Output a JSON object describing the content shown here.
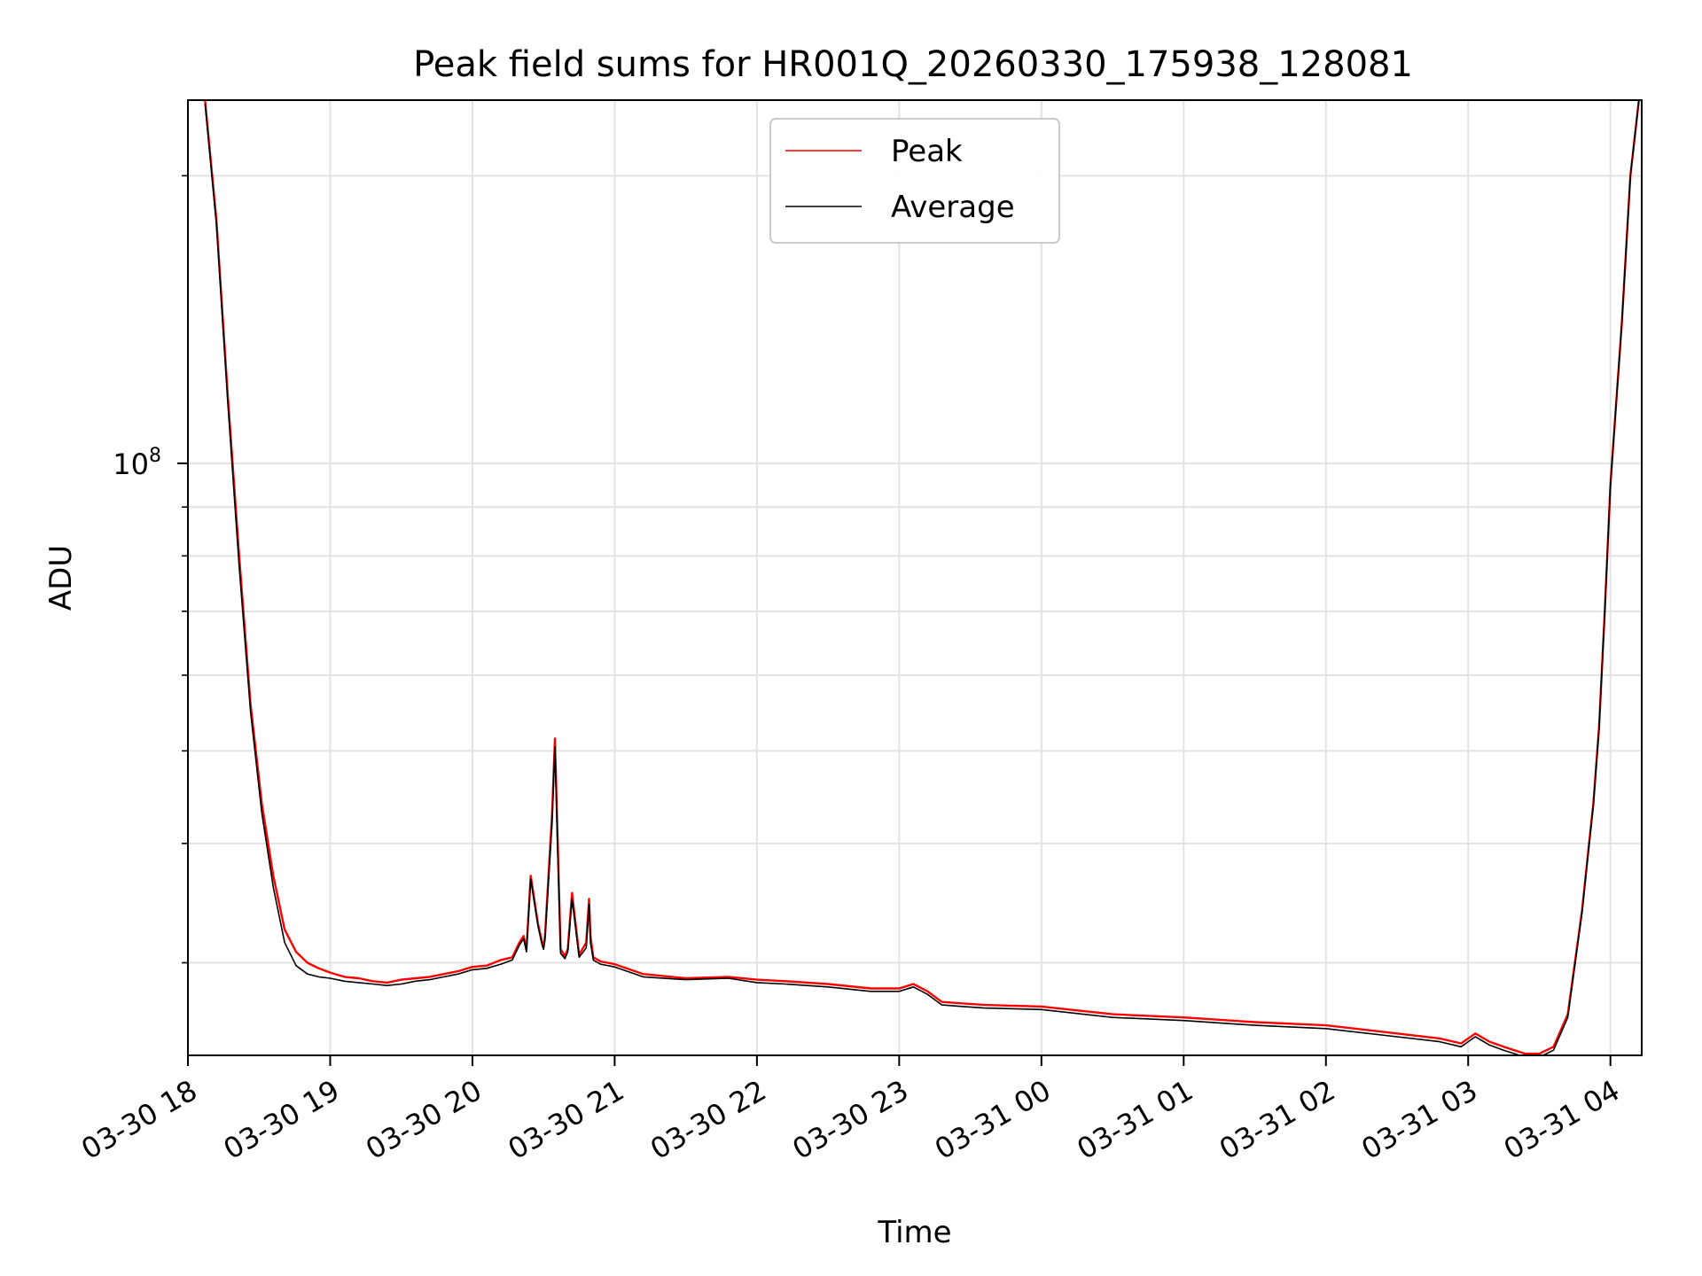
{
  "chart_data": {
    "type": "line",
    "title": "Peak field sums for HR001Q_20260330_175938_128081",
    "xlabel": "Time",
    "ylabel": "ADU",
    "yscale": "log",
    "ylim": [
      24000000,
      240000000
    ],
    "xlim": [
      0,
      10.22
    ],
    "x_ticks": [
      {
        "x": 0,
        "label": "03-30 18"
      },
      {
        "x": 1,
        "label": "03-30 19"
      },
      {
        "x": 2,
        "label": "03-30 20"
      },
      {
        "x": 3,
        "label": "03-30 21"
      },
      {
        "x": 4,
        "label": "03-30 22"
      },
      {
        "x": 5,
        "label": "03-30 23"
      },
      {
        "x": 6,
        "label": "03-31 00"
      },
      {
        "x": 7,
        "label": "03-31 01"
      },
      {
        "x": 8,
        "label": "03-31 02"
      },
      {
        "x": 9,
        "label": "03-31 03"
      },
      {
        "x": 10,
        "label": "03-31 04"
      }
    ],
    "y_major_ticks": [
      {
        "value": 100000000,
        "base": "10",
        "exp": "8"
      }
    ],
    "y_minor_ticks": [
      30000000,
      40000000,
      50000000,
      60000000,
      70000000,
      80000000,
      90000000,
      200000000
    ],
    "grid": true,
    "legend": {
      "position": "top-center",
      "entries": [
        "Peak",
        "Average"
      ]
    },
    "series": [
      {
        "name": "Peak",
        "color": "#ff0000",
        "x": [
          0.12,
          0.2,
          0.28,
          0.36,
          0.44,
          0.52,
          0.6,
          0.68,
          0.76,
          0.84,
          0.92,
          1.0,
          1.1,
          1.2,
          1.3,
          1.4,
          1.5,
          1.6,
          1.7,
          1.8,
          1.9,
          2.0,
          2.1,
          2.2,
          2.28,
          2.33,
          2.36,
          2.38,
          2.41,
          2.46,
          2.49,
          2.5,
          2.51,
          2.53,
          2.56,
          2.58,
          2.6,
          2.62,
          2.65,
          2.67,
          2.7,
          2.75,
          2.8,
          2.82,
          2.83,
          2.85,
          2.9,
          3.0,
          3.2,
          3.5,
          3.8,
          4.0,
          4.2,
          4.5,
          4.8,
          5.0,
          5.1,
          5.2,
          5.3,
          5.45,
          5.6,
          6.0,
          6.5,
          7.0,
          7.5,
          8.0,
          8.5,
          8.8,
          8.95,
          9.05,
          9.15,
          9.25,
          9.4,
          9.5,
          9.6,
          9.7,
          9.8,
          9.85,
          9.88,
          9.92,
          9.96,
          10.0,
          10.08,
          10.14,
          10.2
        ],
        "y": [
          240000000,
          180000000,
          118000000,
          80000000,
          56000000,
          44000000,
          37000000,
          32500000,
          30800000,
          30000000,
          29600000,
          29300000,
          29000000,
          28900000,
          28700000,
          28600000,
          28800000,
          28900000,
          29000000,
          29200000,
          29400000,
          29700000,
          29800000,
          30200000,
          30400000,
          31500000,
          32000000,
          31000000,
          37000000,
          33000000,
          31500000,
          31200000,
          32000000,
          36000000,
          43000000,
          51500000,
          40000000,
          31000000,
          30500000,
          31000000,
          35500000,
          30600000,
          31500000,
          35000000,
          32000000,
          30400000,
          30100000,
          29900000,
          29200000,
          28900000,
          29000000,
          28800000,
          28700000,
          28500000,
          28200000,
          28200000,
          28500000,
          28000000,
          27300000,
          27200000,
          27100000,
          27000000,
          26500000,
          26300000,
          26000000,
          25800000,
          25300000,
          25000000,
          24700000,
          25300000,
          24800000,
          24500000,
          24100000,
          24100000,
          24500000,
          26500000,
          34000000,
          40000000,
          44000000,
          53000000,
          70000000,
          95000000,
          140000000,
          200000000,
          240000000
        ]
      },
      {
        "name": "Average",
        "color": "#000000",
        "x": [
          0.12,
          0.2,
          0.28,
          0.36,
          0.44,
          0.52,
          0.6,
          0.68,
          0.76,
          0.84,
          0.92,
          1.0,
          1.1,
          1.2,
          1.3,
          1.4,
          1.5,
          1.6,
          1.7,
          1.8,
          1.9,
          2.0,
          2.1,
          2.2,
          2.28,
          2.33,
          2.36,
          2.38,
          2.41,
          2.46,
          2.49,
          2.5,
          2.51,
          2.53,
          2.56,
          2.58,
          2.6,
          2.62,
          2.65,
          2.67,
          2.7,
          2.75,
          2.8,
          2.82,
          2.83,
          2.85,
          2.9,
          3.0,
          3.2,
          3.5,
          3.8,
          4.0,
          4.2,
          4.5,
          4.8,
          5.0,
          5.1,
          5.2,
          5.3,
          5.45,
          5.6,
          6.0,
          6.5,
          7.0,
          7.5,
          8.0,
          8.5,
          8.8,
          8.95,
          9.05,
          9.15,
          9.25,
          9.4,
          9.5,
          9.6,
          9.7,
          9.8,
          9.85,
          9.88,
          9.92,
          9.96,
          10.0,
          10.08,
          10.14,
          10.2
        ],
        "y": [
          238000000,
          178000000,
          116000000,
          78000000,
          55000000,
          43000000,
          36000000,
          31500000,
          29800000,
          29200000,
          29000000,
          28900000,
          28700000,
          28600000,
          28500000,
          28400000,
          28500000,
          28700000,
          28800000,
          29000000,
          29200000,
          29500000,
          29600000,
          29900000,
          30200000,
          31300000,
          31800000,
          30800000,
          36700000,
          32800000,
          31300000,
          31000000,
          31700000,
          35500000,
          42000000,
          50500000,
          39000000,
          30700000,
          30300000,
          30800000,
          35000000,
          30400000,
          31100000,
          34500000,
          31500000,
          30200000,
          29900000,
          29700000,
          29000000,
          28800000,
          28900000,
          28600000,
          28500000,
          28300000,
          28000000,
          28000000,
          28300000,
          27800000,
          27100000,
          27000000,
          26900000,
          26800000,
          26300000,
          26100000,
          25800000,
          25600000,
          25100000,
          24800000,
          24500000,
          25100000,
          24600000,
          24300000,
          23900000,
          23900000,
          24300000,
          26300000,
          33800000,
          39800000,
          43800000,
          52800000,
          69800000,
          94800000,
          139800000,
          199800000,
          239800000
        ]
      }
    ]
  }
}
